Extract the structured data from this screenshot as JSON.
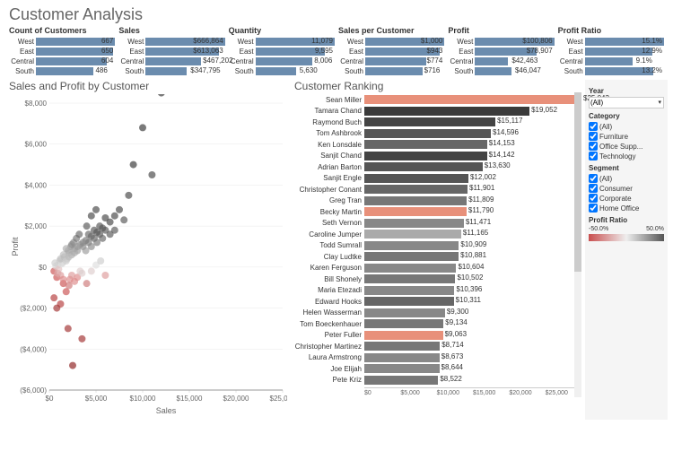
{
  "title": "Customer Analysis",
  "kpi_bar_color": "#6b8cae",
  "regions": [
    "West",
    "East",
    "Central",
    "South"
  ],
  "kpis": [
    {
      "title": "Count of Customers",
      "vals": [
        "667",
        "650",
        "604",
        "486"
      ],
      "widths": [
        100,
        97,
        90,
        73
      ]
    },
    {
      "title": "Sales",
      "vals": [
        "$666,864",
        "$613,063",
        "$467,202",
        "$347,795"
      ],
      "widths": [
        100,
        92,
        70,
        52
      ]
    },
    {
      "title": "Quantity",
      "vals": [
        "11,079",
        "9,595",
        "8,006",
        "5,630"
      ],
      "widths": [
        100,
        87,
        72,
        51
      ]
    },
    {
      "title": "Sales per Customer",
      "vals": [
        "$1,000",
        "$943",
        "$774",
        "$716"
      ],
      "widths": [
        100,
        94,
        77,
        72
      ]
    },
    {
      "title": "Profit",
      "vals": [
        "$100,806",
        "$78,907",
        "$42,463",
        "$46,047"
      ],
      "widths": [
        100,
        78,
        42,
        46
      ]
    },
    {
      "title": "Profit Ratio",
      "vals": [
        "15.1%",
        "12.9%",
        "9.1%",
        "13.2%"
      ],
      "widths": [
        100,
        85,
        60,
        87
      ]
    }
  ],
  "scatter": {
    "title": "Sales and Profit by Customer",
    "xlabel": "Sales",
    "ylabel": "Profit",
    "xlim": [
      0,
      25000
    ],
    "ylim": [
      -6000,
      8000
    ],
    "xticks": [
      0,
      5000,
      10000,
      15000,
      20000,
      25000
    ],
    "xticklabels": [
      "$0",
      "$5,000",
      "$10,000",
      "$15,000",
      "$20,000",
      "$25,000"
    ],
    "yticks": [
      -6000,
      -4000,
      -2000,
      0,
      2000,
      4000,
      6000,
      8000
    ],
    "yticklabels": [
      "($6,000)",
      "($4,000)",
      "($2,000)",
      "$0",
      "$2,000",
      "$4,000",
      "$6,000",
      "$8,000"
    ],
    "points": [
      {
        "x": 500,
        "y": -200,
        "c": "#c94f4f"
      },
      {
        "x": 800,
        "y": -500,
        "c": "#c94f4f"
      },
      {
        "x": 1200,
        "y": -1800,
        "c": "#b33939"
      },
      {
        "x": 2000,
        "y": -3000,
        "c": "#a02c2c"
      },
      {
        "x": 2500,
        "y": -4800,
        "c": "#8b1a1a"
      },
      {
        "x": 3500,
        "y": -3500,
        "c": "#a02c2c"
      },
      {
        "x": 1500,
        "y": -800,
        "c": "#c94f4f"
      },
      {
        "x": 1800,
        "y": -1200,
        "c": "#c94f4f"
      },
      {
        "x": 2200,
        "y": -600,
        "c": "#d88"
      },
      {
        "x": 900,
        "y": 100,
        "c": "#d0d0d0"
      },
      {
        "x": 1100,
        "y": 300,
        "c": "#ccc"
      },
      {
        "x": 1400,
        "y": 200,
        "c": "#ccc"
      },
      {
        "x": 1600,
        "y": 500,
        "c": "#bbb"
      },
      {
        "x": 1900,
        "y": 400,
        "c": "#bbb"
      },
      {
        "x": 2100,
        "y": 700,
        "c": "#aaa"
      },
      {
        "x": 2400,
        "y": 600,
        "c": "#aaa"
      },
      {
        "x": 2700,
        "y": 900,
        "c": "#999"
      },
      {
        "x": 3000,
        "y": 800,
        "c": "#999"
      },
      {
        "x": 3300,
        "y": 1100,
        "c": "#888"
      },
      {
        "x": 3600,
        "y": 1000,
        "c": "#888"
      },
      {
        "x": 3900,
        "y": 1300,
        "c": "#777"
      },
      {
        "x": 4200,
        "y": 1200,
        "c": "#777"
      },
      {
        "x": 4500,
        "y": 1500,
        "c": "#666"
      },
      {
        "x": 4800,
        "y": 1400,
        "c": "#666"
      },
      {
        "x": 5100,
        "y": 1700,
        "c": "#555"
      },
      {
        "x": 5400,
        "y": 1600,
        "c": "#555"
      },
      {
        "x": 5700,
        "y": 1900,
        "c": "#555"
      },
      {
        "x": 6000,
        "y": 1800,
        "c": "#555"
      },
      {
        "x": 6500,
        "y": 2200,
        "c": "#444"
      },
      {
        "x": 7000,
        "y": 2500,
        "c": "#444"
      },
      {
        "x": 7500,
        "y": 2800,
        "c": "#444"
      },
      {
        "x": 8000,
        "y": 2300,
        "c": "#555"
      },
      {
        "x": 3000,
        "y": -500,
        "c": "#d88"
      },
      {
        "x": 3500,
        "y": -300,
        "c": "#dcc"
      },
      {
        "x": 4000,
        "y": -800,
        "c": "#c77"
      },
      {
        "x": 4500,
        "y": -200,
        "c": "#dcc"
      },
      {
        "x": 5000,
        "y": 100,
        "c": "#ddd"
      },
      {
        "x": 5500,
        "y": 300,
        "c": "#ccc"
      },
      {
        "x": 6000,
        "y": -400,
        "c": "#d99"
      },
      {
        "x": 700,
        "y": 50,
        "c": "#ddd"
      },
      {
        "x": 1000,
        "y": -100,
        "c": "#e0c0c0"
      },
      {
        "x": 1300,
        "y": 150,
        "c": "#ddd"
      },
      {
        "x": 2000,
        "y": 800,
        "c": "#aaa"
      },
      {
        "x": 2300,
        "y": 1000,
        "c": "#999"
      },
      {
        "x": 2600,
        "y": 1200,
        "c": "#888"
      },
      {
        "x": 2900,
        "y": 1400,
        "c": "#777"
      },
      {
        "x": 3200,
        "y": 1600,
        "c": "#666"
      },
      {
        "x": 8500,
        "y": 3500,
        "c": "#444"
      },
      {
        "x": 9000,
        "y": 5000,
        "c": "#333"
      },
      {
        "x": 10000,
        "y": 6800,
        "c": "#333"
      },
      {
        "x": 11000,
        "y": 4500,
        "c": "#444"
      },
      {
        "x": 12000,
        "y": 8500,
        "c": "#333"
      },
      {
        "x": 500,
        "y": -1500,
        "c": "#b33939"
      },
      {
        "x": 800,
        "y": -2000,
        "c": "#a02c2c"
      },
      {
        "x": 1200,
        "y": -400,
        "c": "#d99"
      },
      {
        "x": 1500,
        "y": 600,
        "c": "#bbb"
      },
      {
        "x": 1800,
        "y": 900,
        "c": "#aaa"
      },
      {
        "x": 2100,
        "y": -900,
        "c": "#c77"
      },
      {
        "x": 2400,
        "y": 1100,
        "c": "#888"
      },
      {
        "x": 2700,
        "y": -700,
        "c": "#d88"
      },
      {
        "x": 600,
        "y": 200,
        "c": "#ccc"
      },
      {
        "x": 900,
        "y": -300,
        "c": "#daa"
      },
      {
        "x": 1200,
        "y": 400,
        "c": "#bbb"
      },
      {
        "x": 1500,
        "y": -600,
        "c": "#d88"
      },
      {
        "x": 1800,
        "y": 300,
        "c": "#ccc"
      },
      {
        "x": 2100,
        "y": 500,
        "c": "#bbb"
      },
      {
        "x": 2400,
        "y": -400,
        "c": "#d99"
      },
      {
        "x": 2700,
        "y": 700,
        "c": "#aaa"
      },
      {
        "x": 3000,
        "y": 1000,
        "c": "#999"
      },
      {
        "x": 3300,
        "y": -200,
        "c": "#dcc"
      },
      {
        "x": 3600,
        "y": 1200,
        "c": "#888"
      },
      {
        "x": 3900,
        "y": 800,
        "c": "#999"
      },
      {
        "x": 4200,
        "y": 1600,
        "c": "#666"
      },
      {
        "x": 4500,
        "y": 1000,
        "c": "#888"
      },
      {
        "x": 4800,
        "y": 1800,
        "c": "#555"
      },
      {
        "x": 5100,
        "y": 1200,
        "c": "#777"
      },
      {
        "x": 5400,
        "y": 2000,
        "c": "#555"
      },
      {
        "x": 5700,
        "y": 1400,
        "c": "#666"
      },
      {
        "x": 6000,
        "y": 2400,
        "c": "#444"
      },
      {
        "x": 6500,
        "y": 1600,
        "c": "#555"
      },
      {
        "x": 7000,
        "y": 1800,
        "c": "#555"
      },
      {
        "x": 4000,
        "y": 2000,
        "c": "#555"
      },
      {
        "x": 4500,
        "y": 2500,
        "c": "#444"
      },
      {
        "x": 5000,
        "y": 2800,
        "c": "#444"
      }
    ]
  },
  "ranking": {
    "title": "Customer Ranking",
    "max": 25043,
    "xticks": [
      0,
      5000,
      10000,
      15000,
      20000,
      25000
    ],
    "xticklabels": [
      "$0",
      "$5,000",
      "$10,000",
      "$15,000",
      "$20,000",
      "$25,000"
    ],
    "rows": [
      {
        "name": "Sean Miller",
        "val": 25043,
        "label": "$25,043",
        "c": "#e8907a"
      },
      {
        "name": "Tamara Chand",
        "val": 19052,
        "label": "$19,052",
        "c": "#3a3a3a"
      },
      {
        "name": "Raymond Buch",
        "val": 15117,
        "label": "$15,117",
        "c": "#444"
      },
      {
        "name": "Tom Ashbrook",
        "val": 14596,
        "label": "$14,596",
        "c": "#555"
      },
      {
        "name": "Ken Lonsdale",
        "val": 14153,
        "label": "$14,153",
        "c": "#666"
      },
      {
        "name": "Sanjit Chand",
        "val": 14142,
        "label": "$14,142",
        "c": "#444"
      },
      {
        "name": "Adrian Barton",
        "val": 13630,
        "label": "$13,630",
        "c": "#555"
      },
      {
        "name": "Sanjit Engle",
        "val": 12002,
        "label": "$12,002",
        "c": "#555"
      },
      {
        "name": "Christopher Conant",
        "val": 11901,
        "label": "$11,901",
        "c": "#666"
      },
      {
        "name": "Greg Tran",
        "val": 11809,
        "label": "$11,809",
        "c": "#777"
      },
      {
        "name": "Becky Martin",
        "val": 11790,
        "label": "$11,790",
        "c": "#e8907a"
      },
      {
        "name": "Seth Vernon",
        "val": 11471,
        "label": "$11,471",
        "c": "#888"
      },
      {
        "name": "Caroline Jumper",
        "val": 11165,
        "label": "$11,165",
        "c": "#aaa"
      },
      {
        "name": "Todd Sumrall",
        "val": 10909,
        "label": "$10,909",
        "c": "#888"
      },
      {
        "name": "Clay Ludtke",
        "val": 10881,
        "label": "$10,881",
        "c": "#777"
      },
      {
        "name": "Karen Ferguson",
        "val": 10604,
        "label": "$10,604",
        "c": "#888"
      },
      {
        "name": "Bill Shonely",
        "val": 10502,
        "label": "$10,502",
        "c": "#777"
      },
      {
        "name": "Maria Etezadi",
        "val": 10396,
        "label": "$10,396",
        "c": "#888"
      },
      {
        "name": "Edward Hooks",
        "val": 10311,
        "label": "$10,311",
        "c": "#666"
      },
      {
        "name": "Helen Wasserman",
        "val": 9300,
        "label": "$9,300",
        "c": "#888"
      },
      {
        "name": "Tom Boeckenhauer",
        "val": 9134,
        "label": "$9,134",
        "c": "#777"
      },
      {
        "name": "Peter Fuller",
        "val": 9063,
        "label": "$9,063",
        "c": "#e8907a"
      },
      {
        "name": "Christopher Martinez",
        "val": 8714,
        "label": "$8,714",
        "c": "#777"
      },
      {
        "name": "Laura Armstrong",
        "val": 8673,
        "label": "$8,673",
        "c": "#888"
      },
      {
        "name": "Joe Elijah",
        "val": 8644,
        "label": "$8,644",
        "c": "#888"
      },
      {
        "name": "Pete Kriz",
        "val": 8522,
        "label": "$8,522",
        "c": "#777"
      }
    ]
  },
  "filters": {
    "year": {
      "title": "Year",
      "value": "(All)"
    },
    "category": {
      "title": "Category",
      "items": [
        "(All)",
        "Furniture",
        "Office Supp...",
        "Technology"
      ]
    },
    "segment": {
      "title": "Segment",
      "items": [
        "(All)",
        "Consumer",
        "Corporate",
        "Home Office"
      ]
    },
    "profit_ratio": {
      "title": "Profit Ratio",
      "min": "-50.0%",
      "max": "50.0%"
    }
  }
}
